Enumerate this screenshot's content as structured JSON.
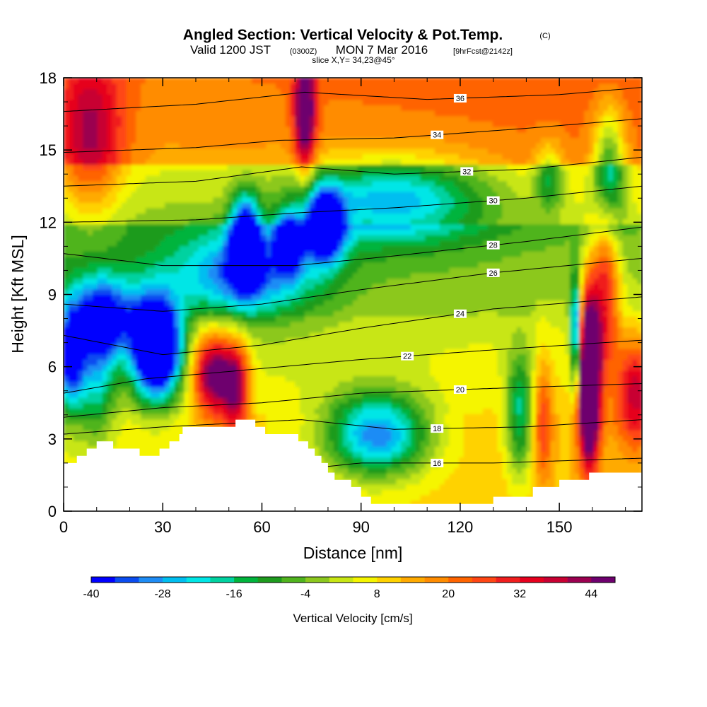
{
  "title": {
    "main": "Angled Section: Vertical Velocity & Pot.Temp.",
    "main_unit": "(C)",
    "valid_prefix": "Valid 1200 JST",
    "valid_utc": "(0300Z)",
    "valid_date": "MON 7 Mar 2016",
    "forecast": "[9hrFcst@2142z]",
    "slice": "slice X,Y= 34,23@45°"
  },
  "chart_data": {
    "type": "heatmap",
    "xlabel": "Distance [nm]",
    "ylabel": "Height [Kft MSL]",
    "xlim": [
      0,
      175
    ],
    "ylim": [
      0,
      18
    ],
    "x_ticks": [
      0,
      30,
      60,
      90,
      120,
      150
    ],
    "y_ticks": [
      0,
      3,
      6,
      9,
      12,
      15,
      18
    ],
    "terrain": [
      [
        0,
        2.0
      ],
      [
        4,
        2.0
      ],
      [
        4,
        2.3
      ],
      [
        7,
        2.3
      ],
      [
        7,
        2.6
      ],
      [
        10,
        2.6
      ],
      [
        10,
        2.9
      ],
      [
        15,
        2.9
      ],
      [
        15,
        2.6
      ],
      [
        23,
        2.6
      ],
      [
        23,
        2.3
      ],
      [
        29,
        2.3
      ],
      [
        29,
        2.6
      ],
      [
        32,
        2.6
      ],
      [
        32,
        2.9
      ],
      [
        35,
        2.9
      ],
      [
        35,
        3.2
      ],
      [
        36,
        3.2
      ],
      [
        36,
        3.5
      ],
      [
        52,
        3.5
      ],
      [
        52,
        3.8
      ],
      [
        58,
        3.8
      ],
      [
        58,
        3.5
      ],
      [
        61,
        3.5
      ],
      [
        61,
        3.2
      ],
      [
        64,
        3.2
      ],
      [
        64,
        3.2
      ],
      [
        71,
        3.2
      ],
      [
        71,
        2.9
      ],
      [
        74,
        2.9
      ],
      [
        74,
        2.6
      ],
      [
        76,
        2.6
      ],
      [
        76,
        2.3
      ],
      [
        78,
        2.3
      ],
      [
        78,
        2.0
      ],
      [
        80,
        2.0
      ],
      [
        80,
        1.6
      ],
      [
        82,
        1.6
      ],
      [
        82,
        1.3
      ],
      [
        87,
        1.3
      ],
      [
        87,
        1.0
      ],
      [
        90,
        1.0
      ],
      [
        90,
        0.6
      ],
      [
        93,
        0.6
      ],
      [
        93,
        0.3
      ],
      [
        130,
        0.3
      ],
      [
        130,
        0.6
      ],
      [
        142,
        0.6
      ],
      [
        142,
        1.0
      ],
      [
        150,
        1.0
      ],
      [
        150,
        1.3
      ],
      [
        159,
        1.3
      ],
      [
        159,
        1.6
      ],
      [
        175,
        1.6
      ]
    ],
    "colorbar": {
      "title": "Vertical Velocity [cm/s]",
      "min": -40,
      "max": 48,
      "step": 4,
      "tick_labels": [
        "-40",
        "-28",
        "-16",
        "-4",
        "8",
        "20",
        "32",
        "44"
      ],
      "colors": [
        "#0000ff",
        "#0a4cf0",
        "#1e8cf5",
        "#00bef0",
        "#00e6e6",
        "#00d2a0",
        "#00b43c",
        "#1e9b1e",
        "#50b41e",
        "#8cc81e",
        "#c8e614",
        "#f5f500",
        "#ffd200",
        "#ffaa00",
        "#ff8c00",
        "#ff6400",
        "#ff4614",
        "#f01e1e",
        "#e6001e",
        "#c80032",
        "#9b0050",
        "#6e006e"
      ]
    },
    "velocity_features": [
      {
        "x": 73,
        "y": 16.6,
        "v": 40,
        "sx": 2.2,
        "sy": 1.8
      },
      {
        "x": 8,
        "y": 15.6,
        "v": 26,
        "sx": 7,
        "sy": 2.3
      },
      {
        "x": 45,
        "y": 5.7,
        "v": 44,
        "sx": 4,
        "sy": 1.2
      },
      {
        "x": 52,
        "y": 5.2,
        "v": 38,
        "sx": 3,
        "sy": 1.3
      },
      {
        "x": 159,
        "y": 5.6,
        "v": 84,
        "sx": 2.2,
        "sy": 2.3
      },
      {
        "x": 164,
        "y": 9.3,
        "v": 30,
        "sx": 3,
        "sy": 2.5
      },
      {
        "x": 173,
        "y": 5.0,
        "v": 30,
        "sx": 4,
        "sy": 1.5
      },
      {
        "x": 145,
        "y": 3.8,
        "v": 18,
        "sx": 2,
        "sy": 1.8
      },
      {
        "x": 28,
        "y": 6.8,
        "v": -76,
        "sx": 5,
        "sy": 1.4
      },
      {
        "x": 55,
        "y": 11.2,
        "v": -60,
        "sx": 3,
        "sy": 1.2
      },
      {
        "x": 79,
        "y": 11.9,
        "v": -55,
        "sx": 4,
        "sy": 1.0
      },
      {
        "x": 68,
        "y": 11.2,
        "v": -45,
        "sx": 3,
        "sy": 0.8
      },
      {
        "x": 100,
        "y": 13.0,
        "v": -30,
        "sx": 20,
        "sy": 1.2
      },
      {
        "x": 55,
        "y": 9.8,
        "v": -30,
        "sx": 15,
        "sy": 1.2
      },
      {
        "x": 12,
        "y": 8.0,
        "v": -40,
        "sx": 7,
        "sy": 1.2
      },
      {
        "x": 2,
        "y": 6.2,
        "v": -40,
        "sx": 3,
        "sy": 1.5
      },
      {
        "x": 95,
        "y": 3.2,
        "v": -40,
        "sx": 11,
        "sy": 1.2
      },
      {
        "x": 155,
        "y": 7.3,
        "v": -45,
        "sx": 1.1,
        "sy": 1.6
      },
      {
        "x": 165,
        "y": 14.2,
        "v": -30,
        "sx": 3.5,
        "sy": 1.8
      },
      {
        "x": 147,
        "y": 13.9,
        "v": -18,
        "sx": 3,
        "sy": 1.0
      },
      {
        "x": 138,
        "y": 4.0,
        "v": -26,
        "sx": 3,
        "sy": 1.8
      },
      {
        "x": 10,
        "y": 5.5,
        "v": -22,
        "sx": 4,
        "sy": 1.8
      }
    ],
    "theta_contours": [
      {
        "label": "16",
        "y_at": [
          [
            0,
            1.4
          ],
          [
            40,
            1.3
          ],
          [
            90,
            2.0
          ],
          [
            130,
            2.0
          ],
          [
            175,
            2.2
          ]
        ],
        "label_x": 113
      },
      {
        "label": "18",
        "y_at": [
          [
            0,
            3.2
          ],
          [
            30,
            3.5
          ],
          [
            72,
            3.8
          ],
          [
            100,
            3.4
          ],
          [
            140,
            3.5
          ],
          [
            175,
            3.8
          ]
        ],
        "label_x": 113
      },
      {
        "label": "20",
        "y_at": [
          [
            0,
            3.9
          ],
          [
            30,
            4.3
          ],
          [
            60,
            4.5
          ],
          [
            90,
            4.9
          ],
          [
            130,
            5.1
          ],
          [
            175,
            5.3
          ]
        ],
        "label_x": 120
      },
      {
        "label": "22",
        "y_at": [
          [
            0,
            4.9
          ],
          [
            25,
            5.5
          ],
          [
            50,
            5.8
          ],
          [
            90,
            6.3
          ],
          [
            130,
            6.7
          ],
          [
            175,
            7.1
          ]
        ],
        "label_x": 104
      },
      {
        "label": "24",
        "y_at": [
          [
            0,
            7.3
          ],
          [
            30,
            6.5
          ],
          [
            60,
            6.9
          ],
          [
            90,
            7.6
          ],
          [
            130,
            8.4
          ],
          [
            175,
            8.9
          ]
        ],
        "label_x": 120
      },
      {
        "label": "26",
        "y_at": [
          [
            0,
            8.6
          ],
          [
            30,
            8.3
          ],
          [
            60,
            8.6
          ],
          [
            90,
            9.2
          ],
          [
            130,
            9.9
          ],
          [
            175,
            10.5
          ]
        ],
        "label_x": 130
      },
      {
        "label": "28",
        "y_at": [
          [
            0,
            10.7
          ],
          [
            30,
            10.2
          ],
          [
            70,
            10.2
          ],
          [
            100,
            10.6
          ],
          [
            140,
            11.2
          ],
          [
            175,
            11.8
          ]
        ],
        "label_x": 130
      },
      {
        "label": "30",
        "y_at": [
          [
            0,
            12.0
          ],
          [
            40,
            12.1
          ],
          [
            72,
            12.4
          ],
          [
            100,
            12.6
          ],
          [
            140,
            13.0
          ],
          [
            175,
            13.5
          ]
        ],
        "label_x": 130
      },
      {
        "label": "32",
        "y_at": [
          [
            0,
            13.5
          ],
          [
            40,
            13.7
          ],
          [
            72,
            14.3
          ],
          [
            100,
            14.0
          ],
          [
            140,
            14.2
          ],
          [
            175,
            14.7
          ]
        ],
        "label_x": 122
      },
      {
        "label": "34",
        "y_at": [
          [
            0,
            14.9
          ],
          [
            40,
            15.1
          ],
          [
            65,
            15.4
          ],
          [
            100,
            15.5
          ],
          [
            140,
            15.9
          ],
          [
            175,
            16.3
          ]
        ],
        "label_x": 113
      },
      {
        "label": "36",
        "y_at": [
          [
            0,
            16.6
          ],
          [
            40,
            16.9
          ],
          [
            73,
            17.4
          ],
          [
            110,
            17.1
          ],
          [
            150,
            17.3
          ],
          [
            175,
            17.6
          ]
        ],
        "label_x": 120
      }
    ]
  }
}
